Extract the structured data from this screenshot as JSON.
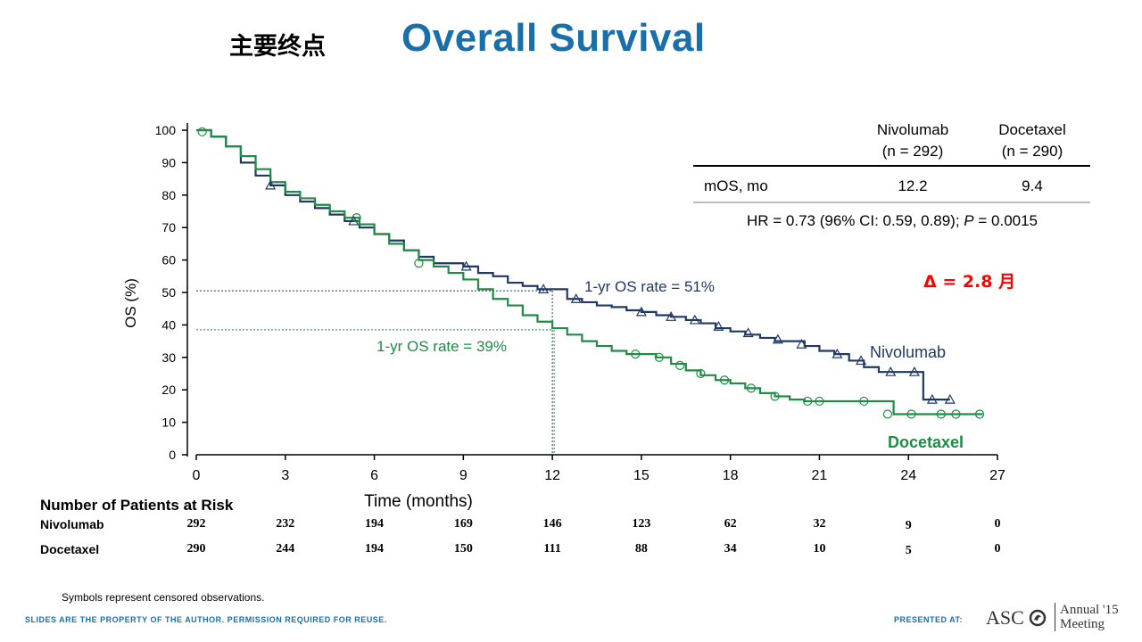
{
  "slide": {
    "label": "主要终点",
    "title": "Overall Survival",
    "delta": "Δ = 2.8 月"
  },
  "summary_table": {
    "col1_name": "Nivolumab",
    "col1_n": "(n = 292)",
    "col2_name": "Docetaxel",
    "col2_n": "(n = 290)",
    "row_label": "mOS, mo",
    "val1": "12.2",
    "val2": "9.4",
    "hr_text": "HR = 0.73 (96% CI: 0.59, 0.89); ",
    "p_label": "P",
    "p_value": " = 0.0015"
  },
  "risk_table": {
    "title": "Number of Patients at Risk",
    "rows": [
      {
        "name": "Nivolumab",
        "values": [
          "292",
          "232",
          "194",
          "169",
          "146",
          "123",
          "62",
          "32",
          "9",
          "0"
        ]
      },
      {
        "name": "Docetaxel",
        "values": [
          "290",
          "244",
          "194",
          "150",
          "111",
          "88",
          "34",
          "10",
          "5",
          "0"
        ]
      }
    ]
  },
  "footnote": "Symbols represent censored observations.",
  "footer": {
    "left": "SLIDES ARE THE PROPERTY OF THE AUTHOR. PERMISSION REQUIRED FOR REUSE.",
    "right": "PRESENTED AT:",
    "asco": "ASC",
    "annual1": "Annual '15",
    "annual2": "Meeting"
  },
  "chart_data": {
    "type": "line",
    "xlabel": "Time (months)",
    "ylabel": "OS (%)",
    "xlim": [
      0,
      27
    ],
    "ylim": [
      0,
      100
    ],
    "xticks": [
      0,
      3,
      6,
      9,
      12,
      15,
      18,
      21,
      24,
      27
    ],
    "yticks": [
      0,
      10,
      20,
      30,
      40,
      50,
      60,
      70,
      80,
      90,
      100
    ],
    "colors": {
      "nivolumab": "#1f3864",
      "docetaxel": "#1e8c45"
    },
    "annotations": [
      {
        "text": "1-yr OS rate = 51%",
        "x": 12,
        "y": 50.5,
        "series": "Nivolumab"
      },
      {
        "text": "1-yr OS rate = 39%",
        "x": 12,
        "y": 38.5,
        "series": "Docetaxel"
      }
    ],
    "series": [
      {
        "name": "Nivolumab",
        "x": [
          0,
          0.5,
          1,
          1.5,
          2,
          2.5,
          3,
          3.5,
          4,
          4.5,
          5,
          5.5,
          6,
          6.5,
          7,
          7.5,
          8,
          8.5,
          9,
          9.5,
          10,
          10.5,
          11,
          11.5,
          12,
          12.5,
          13,
          13.5,
          14,
          14.5,
          15,
          15.5,
          16,
          16.5,
          17,
          17.5,
          18,
          18.5,
          19,
          19.5,
          20,
          20.5,
          21,
          21.5,
          22,
          22.5,
          23,
          23.5,
          24,
          24.3,
          24.5,
          25,
          25.4
        ],
        "y": [
          100,
          98,
          95,
          90,
          86,
          83,
          80,
          78,
          76,
          74,
          72,
          70,
          68,
          66,
          63,
          61,
          59,
          59,
          58,
          56,
          55,
          53,
          52,
          51,
          51,
          48,
          47,
          46,
          45.5,
          44.5,
          44,
          43,
          42.5,
          41.5,
          40.5,
          39,
          38,
          37,
          36,
          35,
          35,
          33.5,
          32,
          31,
          29,
          27,
          25.5,
          25.5,
          25.5,
          25.5,
          17,
          17,
          17
        ],
        "censored_x": [
          2.5,
          5.3,
          9.1,
          11.7,
          12.8,
          15.0,
          16.0,
          16.8,
          17.6,
          18.6,
          19.6,
          20.4,
          21.6,
          22.4,
          23.4,
          24.2,
          24.8,
          25.4
        ],
        "censored_y": [
          83,
          72,
          58,
          51,
          48,
          44,
          42.5,
          41.5,
          39.5,
          37.5,
          35.5,
          34,
          31,
          29,
          25.5,
          25.5,
          17,
          17
        ]
      },
      {
        "name": "Docetaxel",
        "x": [
          0,
          0.5,
          1,
          1.5,
          2,
          2.5,
          3,
          3.5,
          4,
          4.5,
          5,
          5.5,
          6,
          6.5,
          7,
          7.5,
          8,
          8.5,
          9,
          9.5,
          10,
          10.5,
          11,
          11.5,
          12,
          12.5,
          13,
          13.5,
          14,
          14.5,
          15,
          15.5,
          16,
          16.5,
          17,
          17.5,
          18,
          18.5,
          19,
          19.5,
          20,
          20.5,
          21,
          21.5,
          22,
          22.5,
          23,
          23.5,
          24,
          25,
          26,
          26.5
        ],
        "y": [
          100,
          98,
          95,
          92,
          88,
          84,
          81,
          79,
          77,
          75,
          73,
          71,
          68,
          65,
          63,
          60,
          58,
          56,
          54,
          51,
          48,
          46,
          43,
          41,
          39,
          37,
          35,
          33.5,
          32,
          31,
          31,
          30,
          28,
          26,
          24.5,
          23,
          22,
          20.5,
          19,
          18,
          17,
          16.5,
          16.5,
          16.5,
          16.5,
          16.5,
          16.5,
          12.5,
          12.5,
          12.5,
          12.5,
          12.5
        ],
        "censored_x": [
          0.2,
          5.4,
          7.5,
          14.8,
          15.6,
          16.3,
          17.0,
          17.8,
          18.7,
          19.5,
          20.6,
          21.0,
          22.5,
          23.3,
          24.1,
          25.1,
          25.6,
          26.4
        ],
        "censored_y": [
          99.5,
          73,
          59,
          31,
          30,
          27.5,
          25,
          23,
          20.5,
          18,
          16.5,
          16.5,
          16.5,
          12.5,
          12.5,
          12.5,
          12.5,
          12.5
        ]
      }
    ]
  }
}
